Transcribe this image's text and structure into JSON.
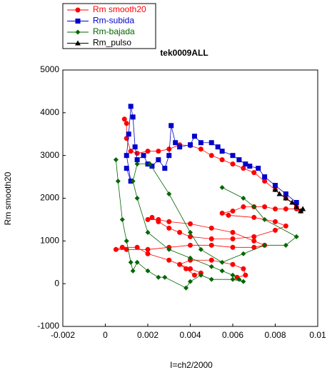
{
  "chart_data": {
    "type": "scatter",
    "title": "tek0009ALL",
    "x_label": "I=ch2/2000",
    "y_label": "Rm smooth20",
    "xlim": [
      -0.002,
      0.01
    ],
    "xticks": [
      -0.002,
      0,
      0.002,
      0.004,
      0.006,
      0.008,
      0.01
    ],
    "ylim": [
      -1000,
      5000
    ],
    "yticks": [
      -1000,
      0,
      1000,
      2000,
      3000,
      4000,
      5000
    ],
    "legend": "upper left",
    "series": [
      {
        "name": "Rm smooth20",
        "color": "#ff0000",
        "marker": "circle",
        "x": [
          0.0009,
          0.001,
          0.001,
          0.0012,
          0.0015,
          0.002,
          0.0025,
          0.003,
          0.0035,
          0.004,
          0.0045,
          0.005,
          0.0055,
          0.006,
          0.0065,
          0.007,
          0.0075,
          0.008,
          0.0085,
          0.009,
          0.0092,
          0.009,
          0.0085,
          0.008,
          0.0075,
          0.007,
          0.0065,
          0.006,
          0.0055,
          0.0058,
          0.007,
          0.008,
          0.0085,
          0.008,
          0.007,
          0.006,
          0.005,
          0.004,
          0.0035,
          0.003,
          0.0025,
          0.0022,
          0.002,
          0.0025,
          0.003,
          0.004,
          0.005,
          0.006,
          0.007,
          0.0075,
          0.007,
          0.006,
          0.005,
          0.004,
          0.003,
          0.002,
          0.001,
          0.0005,
          0.0008,
          0.0015,
          0.002,
          0.003,
          0.004,
          0.0045,
          0.0042,
          0.0038,
          0.0035,
          0.004,
          0.005,
          0.006,
          0.0065,
          0.0066,
          0.0062
        ],
        "values": [
          3850,
          3750,
          3400,
          3100,
          3050,
          3100,
          3100,
          3150,
          3250,
          3230,
          3150,
          3000,
          2900,
          2800,
          2700,
          2600,
          2400,
          2200,
          2000,
          1800,
          1700,
          1750,
          1750,
          1750,
          1800,
          1800,
          1800,
          1700,
          1650,
          1600,
          1550,
          1450,
          1350,
          1250,
          1100,
          1050,
          1050,
          1100,
          1200,
          1300,
          1450,
          1550,
          1500,
          1500,
          1450,
          1400,
          1300,
          1200,
          1000,
          900,
          850,
          850,
          900,
          900,
          850,
          800,
          800,
          800,
          850,
          850,
          700,
          550,
          350,
          250,
          200,
          350,
          450,
          550,
          550,
          450,
          350,
          200,
          150
        ]
      },
      {
        "name": "Rm-subida",
        "color": "#0000cc",
        "marker": "square",
        "x": [
          0.001,
          0.0012,
          0.001,
          0.0011,
          0.0012,
          0.0013,
          0.0014,
          0.0015,
          0.0018,
          0.002,
          0.0022,
          0.0025,
          0.0028,
          0.003,
          0.0031,
          0.0033,
          0.0035,
          0.004,
          0.0042,
          0.0045,
          0.005,
          0.0053,
          0.0055,
          0.006,
          0.0063,
          0.0066,
          0.0068,
          0.0072,
          0.0075,
          0.008,
          0.0085,
          0.009
        ],
        "values": [
          2700,
          2400,
          3000,
          3500,
          4150,
          3900,
          3200,
          2900,
          3000,
          2800,
          2750,
          2900,
          2700,
          3000,
          3700,
          3300,
          3200,
          3250,
          3450,
          3300,
          3300,
          3200,
          3100,
          3000,
          2900,
          2800,
          2750,
          2700,
          2500,
          2300,
          2100,
          1900
        ]
      },
      {
        "name": "Rm-bajada",
        "color": "#006600",
        "marker": "diamond",
        "x": [
          0.0005,
          0.0006,
          0.0008,
          0.001,
          0.0012,
          0.0013,
          0.0015,
          0.002,
          0.0025,
          0.0028,
          0.0038,
          0.004,
          0.0045,
          0.005,
          0.006,
          0.0065,
          0.0063,
          0.006,
          0.0055,
          0.005,
          0.004,
          0.003,
          0.002,
          0.0015,
          0.0013,
          0.0015,
          0.0021,
          0.003,
          0.004,
          0.0045,
          0.0055,
          0.0065,
          0.0075,
          0.0085,
          0.009,
          0.0075,
          0.007,
          0.0065,
          0.0055
        ],
        "values": [
          2900,
          2400,
          1500,
          1000,
          500,
          300,
          500,
          300,
          150,
          150,
          -100,
          50,
          200,
          100,
          100,
          50,
          100,
          200,
          300,
          400,
          600,
          800,
          1200,
          2000,
          2400,
          2800,
          2800,
          2100,
          1200,
          800,
          500,
          700,
          900,
          900,
          1100,
          1500,
          1800,
          2000,
          2250
        ]
      },
      {
        "name": "Rm_pulso",
        "color": "#000000",
        "marker": "triangle",
        "x": [
          0.008,
          0.0082,
          0.0085,
          0.0088,
          0.009,
          0.0092,
          0.0093
        ],
        "values": [
          2200,
          2100,
          2000,
          1900,
          1800,
          1700,
          1750
        ]
      }
    ]
  }
}
